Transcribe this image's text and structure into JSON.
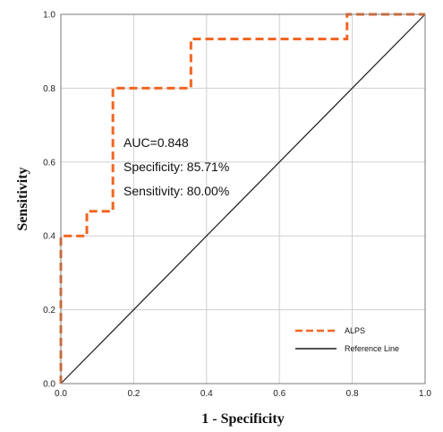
{
  "chart_data": {
    "type": "line",
    "xlabel": "1 - Specificity",
    "ylabel": "Sensitivity",
    "xlim": [
      0,
      1
    ],
    "ylim": [
      0,
      1
    ],
    "xticks": [
      "0.0",
      "0.2",
      "0.4",
      "0.6",
      "0.8",
      "1.0"
    ],
    "yticks": [
      "0.0",
      "0.2",
      "0.4",
      "0.6",
      "0.8",
      "1.0"
    ],
    "grid": true,
    "legend_position": "bottom-right",
    "annotations": [
      "AUC=0.848",
      "Specificity: 85.71%",
      "Sensitivity: 80.00%"
    ],
    "series": [
      {
        "name": "ALPS",
        "style": "dashed",
        "color": "#F26522",
        "x": [
          0,
          0,
          0.0714,
          0.0714,
          0.1429,
          0.1429,
          0.3571,
          0.3571,
          0.7857,
          0.7857,
          1.0
        ],
        "y": [
          0,
          0.4,
          0.4,
          0.4667,
          0.4667,
          0.8,
          0.8,
          0.9333,
          0.9333,
          1.0,
          1.0
        ]
      },
      {
        "name": "Reference Line",
        "style": "solid",
        "color": "#1a1a1a",
        "x": [
          0,
          1
        ],
        "y": [
          0,
          1
        ]
      }
    ]
  }
}
